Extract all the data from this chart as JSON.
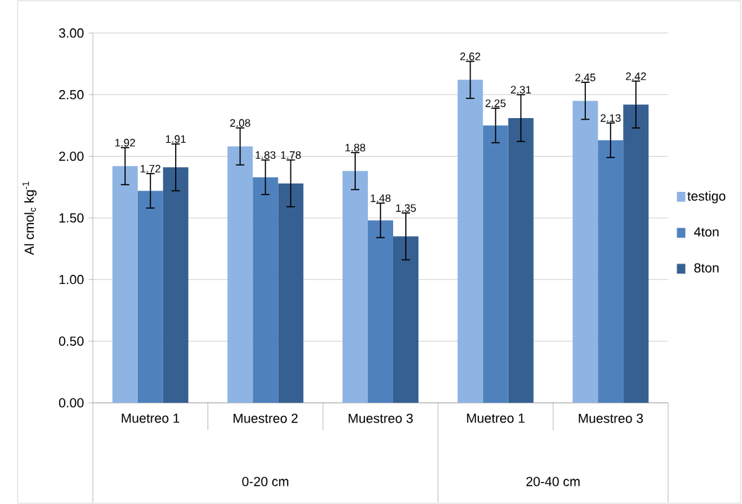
{
  "chart_data": {
    "type": "bar",
    "ylabel": "Al  cmol$_{c}$ kg$^{-1}$",
    "categories": [
      "Muetreo 1",
      "Muestreo 2",
      "Muestreo 3",
      "Muetreo 1",
      "Muestreo 3"
    ],
    "annotations": [
      "0-20 cm",
      "20-40 cm"
    ],
    "series": [
      {
        "name": "testigo",
        "color": "#8eb4e3",
        "values": [
          1.92,
          2.08,
          1.88,
          2.62,
          2.45
        ],
        "errors": [
          0.15,
          0.15,
          0.15,
          0.15,
          0.15
        ]
      },
      {
        "name": "4ton",
        "color": "#4f81bd",
        "values": [
          1.72,
          1.83,
          1.48,
          2.25,
          2.13
        ],
        "errors": [
          0.14,
          0.14,
          0.14,
          0.14,
          0.14
        ]
      },
      {
        "name": "8ton",
        "color": "#376092",
        "values": [
          1.91,
          1.78,
          1.35,
          2.31,
          2.42
        ],
        "errors": [
          0.19,
          0.19,
          0.19,
          0.19,
          0.19
        ]
      }
    ],
    "ylim": [
      0,
      3
    ],
    "yticks": [
      {
        "value": 0,
        "label": "0.00"
      },
      {
        "value": 0.5,
        "label": "0.50"
      },
      {
        "value": 1,
        "label": "1.00"
      },
      {
        "value": 1.5,
        "label": "1.50"
      },
      {
        "value": 2,
        "label": "2.00"
      },
      {
        "value": 2.5,
        "label": "2.50"
      },
      {
        "value": 3,
        "label": "3.00"
      }
    ],
    "grid": "y",
    "legend": "right",
    "data_labels": true
  }
}
